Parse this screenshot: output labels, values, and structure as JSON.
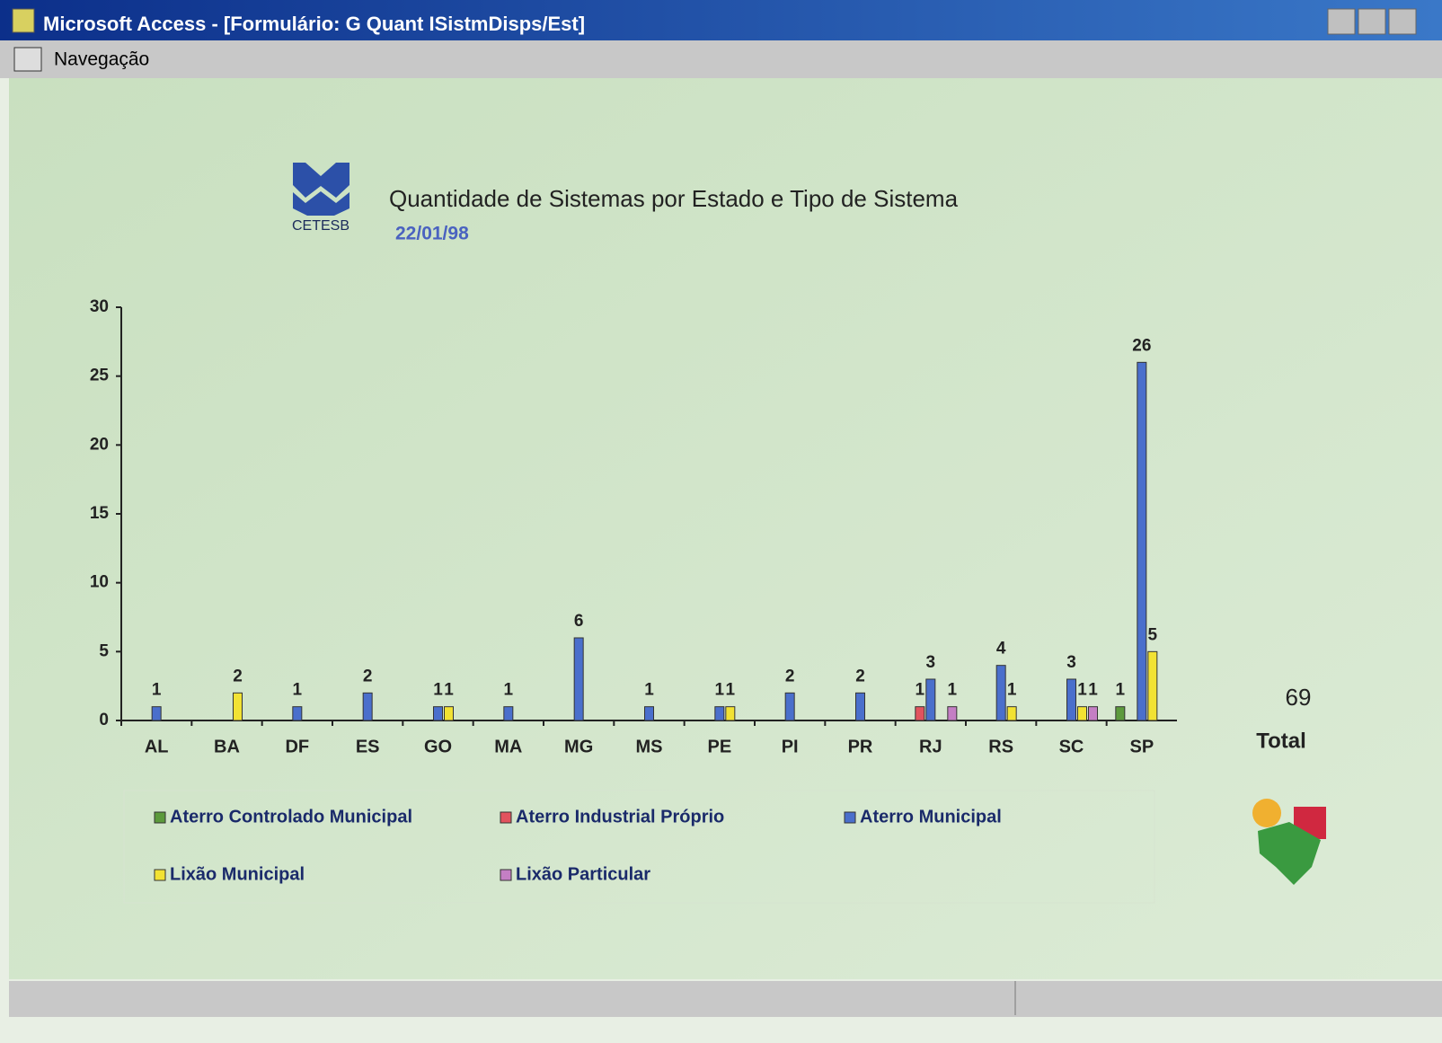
{
  "window": {
    "title": "Microsoft Access - [Formulário: G Quant ISistmDisps/Est]",
    "menu": "Navegação"
  },
  "header": {
    "logo_text": "CETESB",
    "date": "22/01/98"
  },
  "total": {
    "value": 69,
    "label": "Total"
  },
  "chart_data": {
    "type": "bar",
    "title": "Quantidade de Sistemas por Estado e Tipo de Sistema",
    "categories": [
      "AL",
      "BA",
      "DF",
      "ES",
      "GO",
      "MA",
      "MG",
      "MS",
      "PE",
      "PI",
      "PR",
      "RJ",
      "RS",
      "SC",
      "SP"
    ],
    "series": [
      {
        "name": "Aterro Controlado Municipal",
        "color": "#5c9a3c",
        "values": [
          null,
          null,
          null,
          null,
          null,
          null,
          null,
          null,
          null,
          null,
          null,
          null,
          null,
          null,
          1
        ]
      },
      {
        "name": "Aterro Industrial Próprio",
        "color": "#e2535e",
        "values": [
          null,
          null,
          null,
          null,
          null,
          null,
          null,
          null,
          null,
          null,
          null,
          1,
          null,
          null,
          null
        ]
      },
      {
        "name": "Aterro Municipal",
        "color": "#4a6fcc",
        "values": [
          1,
          null,
          1,
          2,
          1,
          1,
          6,
          1,
          1,
          2,
          2,
          3,
          4,
          3,
          26
        ]
      },
      {
        "name": "Lixão Municipal",
        "color": "#f2e233",
        "values": [
          null,
          2,
          null,
          null,
          1,
          null,
          null,
          null,
          1,
          null,
          null,
          null,
          1,
          1,
          5
        ]
      },
      {
        "name": "Lixão Particular",
        "color": "#c47fc4",
        "values": [
          null,
          null,
          null,
          null,
          null,
          null,
          null,
          null,
          null,
          null,
          null,
          1,
          null,
          1,
          null
        ]
      }
    ],
    "ylim": [
      0,
      30
    ],
    "yticks": [
      0,
      5,
      10,
      15,
      20,
      25,
      30
    ]
  }
}
